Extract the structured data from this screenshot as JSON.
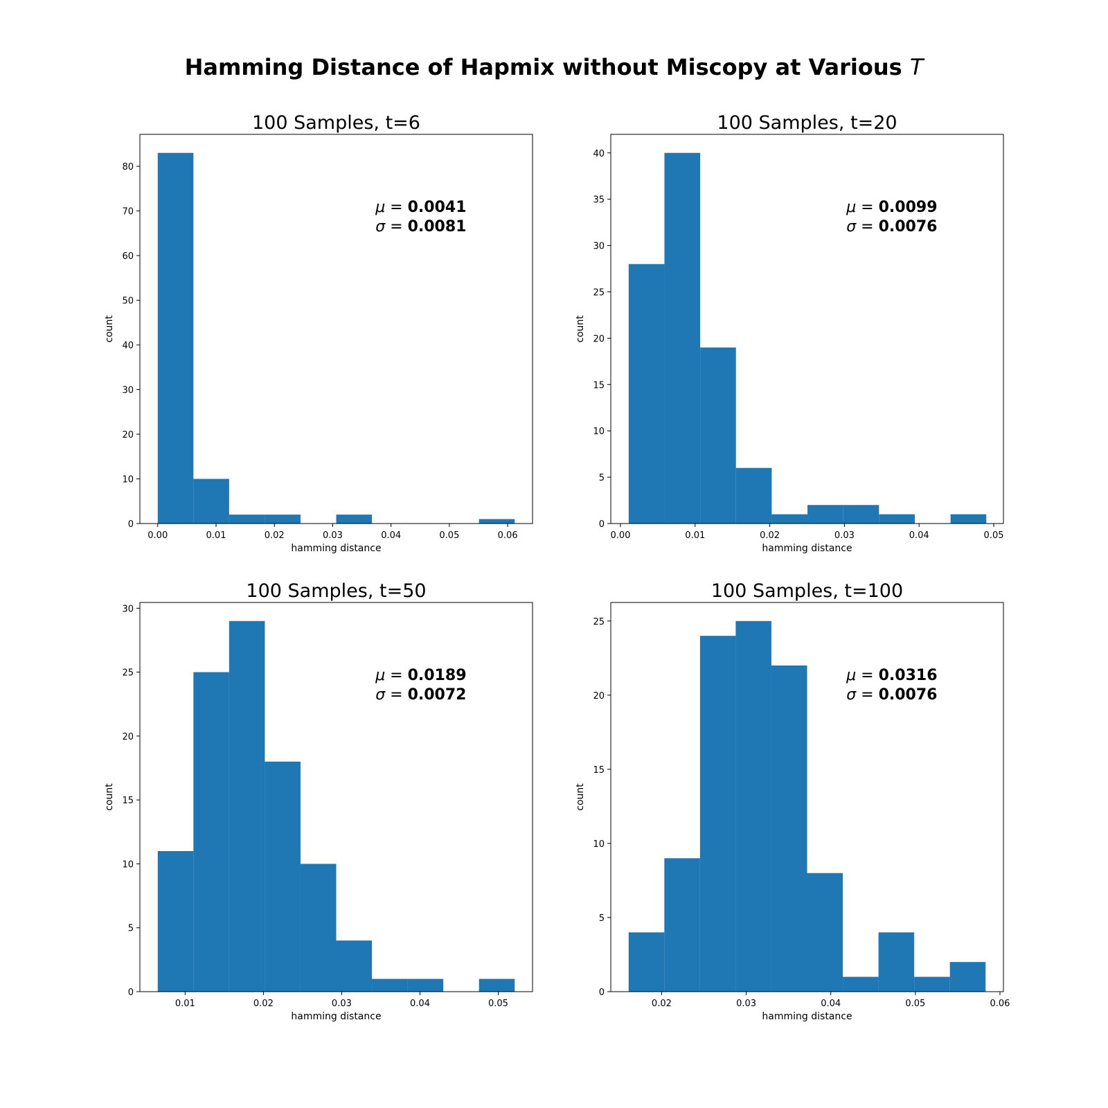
{
  "figure": {
    "title": "Hamming Distance of Hapmix without Miscopy at Various",
    "title_symbol": "T"
  },
  "colors": {
    "bar": "#1f77b4",
    "axis": "#000000",
    "background": "#ffffff"
  },
  "chart_data": [
    {
      "type": "bar",
      "title": "100 Samples, t=6",
      "xlabel": "hamming distance",
      "ylabel": "count",
      "bin_edges": [
        0.0,
        0.00612,
        0.01224,
        0.01836,
        0.02448,
        0.0306,
        0.03672,
        0.04284,
        0.04896,
        0.05508,
        0.0612
      ],
      "counts": [
        83,
        10,
        2,
        2,
        0,
        2,
        0,
        0,
        0,
        1
      ],
      "xlim": [
        -0.00306,
        0.06426
      ],
      "ylim": [
        0,
        87.15
      ],
      "xticks": [
        0.0,
        0.01,
        0.02,
        0.03,
        0.04,
        0.05,
        0.06
      ],
      "xtick_labels": [
        "0.00",
        "0.01",
        "0.02",
        "0.03",
        "0.04",
        "0.05",
        "0.06"
      ],
      "yticks": [
        0,
        10,
        20,
        30,
        40,
        50,
        60,
        70,
        80
      ],
      "ytick_labels": [
        "0",
        "10",
        "20",
        "30",
        "40",
        "50",
        "60",
        "70",
        "80"
      ],
      "annotation": {
        "mu_symbol": "μ",
        "mu_value": "0.0041",
        "sigma_symbol": "σ",
        "sigma_value": "0.0081"
      }
    },
    {
      "type": "bar",
      "title": "100 Samples, t=20",
      "xlabel": "hamming distance",
      "ylabel": "count",
      "bin_edges": [
        0.0011,
        0.00589,
        0.01068,
        0.01547,
        0.02026,
        0.02505,
        0.02984,
        0.03463,
        0.03942,
        0.04421,
        0.049
      ],
      "counts": [
        28,
        40,
        19,
        6,
        1,
        2,
        2,
        1,
        0,
        1
      ],
      "xlim": [
        -0.001295,
        0.051295
      ],
      "ylim": [
        0,
        42
      ],
      "xticks": [
        0.0,
        0.01,
        0.02,
        0.03,
        0.04,
        0.05
      ],
      "xtick_labels": [
        "0.00",
        "0.01",
        "0.02",
        "0.03",
        "0.04",
        "0.05"
      ],
      "yticks": [
        0,
        5,
        10,
        15,
        20,
        25,
        30,
        35,
        40
      ],
      "ytick_labels": [
        "0",
        "5",
        "10",
        "15",
        "20",
        "25",
        "30",
        "35",
        "40"
      ],
      "annotation": {
        "mu_symbol": "μ",
        "mu_value": "0.0099",
        "sigma_symbol": "σ",
        "sigma_value": "0.0076"
      }
    },
    {
      "type": "bar",
      "title": "100 Samples, t=50",
      "xlabel": "hamming distance",
      "ylabel": "count",
      "bin_edges": [
        0.0065,
        0.01106,
        0.01562,
        0.02018,
        0.02474,
        0.0293,
        0.03386,
        0.03842,
        0.04298,
        0.04754,
        0.0521
      ],
      "counts": [
        11,
        25,
        29,
        18,
        10,
        4,
        1,
        1,
        0,
        1
      ],
      "xlim": [
        0.00422,
        0.05438
      ],
      "ylim": [
        0,
        30.45
      ],
      "xticks": [
        0.01,
        0.02,
        0.03,
        0.04,
        0.05
      ],
      "xtick_labels": [
        "0.01",
        "0.02",
        "0.03",
        "0.04",
        "0.05"
      ],
      "yticks": [
        0,
        5,
        10,
        15,
        20,
        25,
        30
      ],
      "ytick_labels": [
        "0",
        "5",
        "10",
        "15",
        "20",
        "25",
        "30"
      ],
      "annotation": {
        "mu_symbol": "μ",
        "mu_value": "0.0189",
        "sigma_symbol": "σ",
        "sigma_value": "0.0072"
      }
    },
    {
      "type": "bar",
      "title": "100 Samples, t=100",
      "xlabel": "hamming distance",
      "ylabel": "count",
      "bin_edges": [
        0.0161,
        0.02032,
        0.02454,
        0.02876,
        0.03298,
        0.0372,
        0.04142,
        0.04564,
        0.04986,
        0.05408,
        0.0583
      ],
      "counts": [
        4,
        9,
        24,
        25,
        22,
        8,
        1,
        4,
        1,
        2
      ],
      "xlim": [
        0.01399,
        0.06041
      ],
      "ylim": [
        0,
        26.25
      ],
      "xticks": [
        0.02,
        0.03,
        0.04,
        0.05,
        0.06
      ],
      "xtick_labels": [
        "0.02",
        "0.03",
        "0.04",
        "0.05",
        "0.06"
      ],
      "yticks": [
        0,
        5,
        10,
        15,
        20,
        25
      ],
      "ytick_labels": [
        "0",
        "5",
        "10",
        "15",
        "20",
        "25"
      ],
      "annotation": {
        "mu_symbol": "μ",
        "mu_value": "0.0316",
        "sigma_symbol": "σ",
        "sigma_value": "0.0076"
      }
    }
  ]
}
